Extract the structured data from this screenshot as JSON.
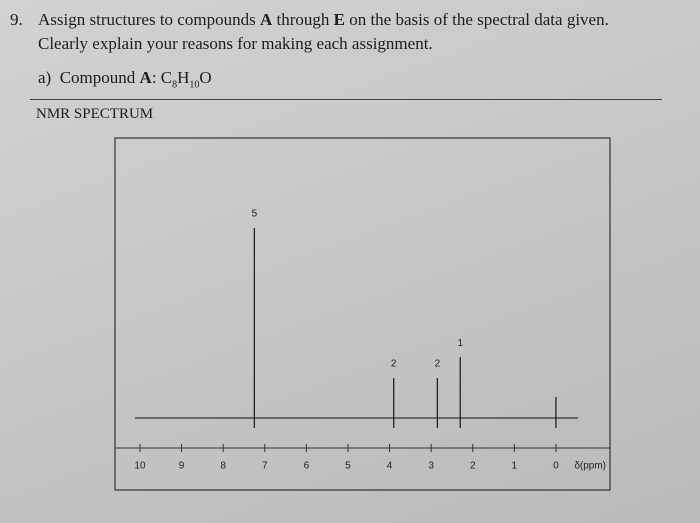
{
  "question": {
    "number": "9.",
    "text": [
      "Assign structures to compounds ",
      "A",
      " through ",
      "E",
      " on the basis of the spectral data given. Clearly explain your reasons for making each assignment."
    ]
  },
  "part": {
    "label": "a)",
    "text": [
      "Compound ",
      "A",
      ": C",
      "8",
      "H",
      "10",
      "O"
    ]
  },
  "section_title": "NMR SPECTRUM",
  "chart_data": {
    "type": "nmr",
    "x_label": "δ(ppm)",
    "xlim": [
      10.6,
      -1.3
    ],
    "xticks": [
      10,
      9,
      8,
      7,
      6,
      5,
      4,
      3,
      2,
      1,
      0
    ],
    "peaks": {
      "shift": [
        7.25,
        3.9,
        2.85,
        2.3,
        0
      ],
      "intensity": [
        100,
        21,
        21,
        32,
        11
      ],
      "integration": [
        5,
        2,
        2,
        1,
        null
      ]
    }
  }
}
